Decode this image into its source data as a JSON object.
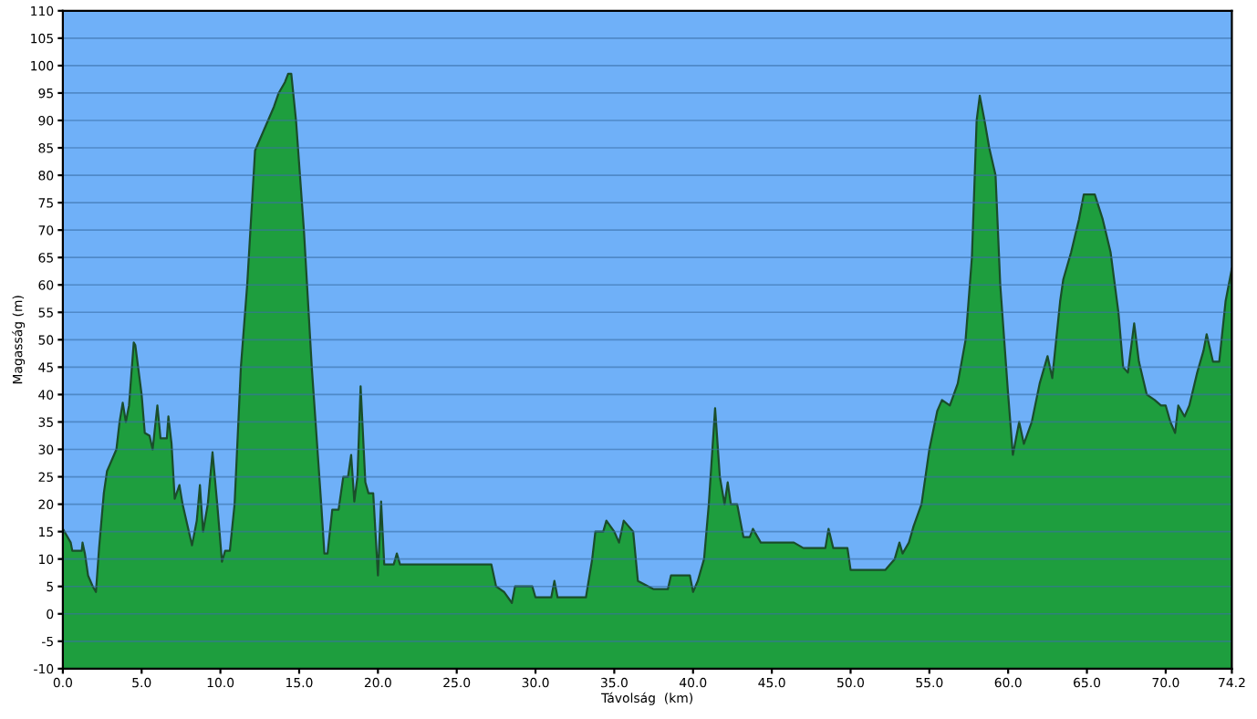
{
  "chart_data": {
    "type": "area",
    "xlabel": "Távolság  (km)",
    "ylabel": "Magasság (m)",
    "xlim": [
      0,
      74.2
    ],
    "ylim": [
      -10,
      110
    ],
    "xticks": [
      {
        "value": 0,
        "label": "0.0"
      },
      {
        "value": 5,
        "label": "5.0"
      },
      {
        "value": 10,
        "label": "10.0"
      },
      {
        "value": 15,
        "label": "15.0"
      },
      {
        "value": 20,
        "label": "20.0"
      },
      {
        "value": 25,
        "label": "25.0"
      },
      {
        "value": 30,
        "label": "30.0"
      },
      {
        "value": 35,
        "label": "35.0"
      },
      {
        "value": 40,
        "label": "40.0"
      },
      {
        "value": 45,
        "label": "45.0"
      },
      {
        "value": 50,
        "label": "50.0"
      },
      {
        "value": 55,
        "label": "55.0"
      },
      {
        "value": 60,
        "label": "60.0"
      },
      {
        "value": 65,
        "label": "65.0"
      },
      {
        "value": 70,
        "label": "70.0"
      },
      {
        "value": 74.2,
        "label": "74.2"
      }
    ],
    "yticks": [
      -10,
      -5,
      0,
      5,
      10,
      15,
      20,
      25,
      30,
      35,
      40,
      45,
      50,
      55,
      60,
      65,
      70,
      75,
      80,
      85,
      90,
      95,
      100,
      105,
      110
    ],
    "grid": "y",
    "x": [
      0,
      0.5,
      0.6,
      1.2,
      1.25,
      1.4,
      1.6,
      1.9,
      2.1,
      2.3,
      2.6,
      2.8,
      3.1,
      3.4,
      3.6,
      3.8,
      4.0,
      4.2,
      4.5,
      4.6,
      5.0,
      5.2,
      5.5,
      5.7,
      6.0,
      6.2,
      6.6,
      6.7,
      6.9,
      7.1,
      7.4,
      7.6,
      8.0,
      8.2,
      8.5,
      8.7,
      8.9,
      9.2,
      9.5,
      9.8,
      10.1,
      10.3,
      10.6,
      10.9,
      11.3,
      11.7,
      12.2,
      12.5,
      12.8,
      13.1,
      13.4,
      13.7,
      14.1,
      14.3,
      14.5,
      14.8,
      15.3,
      15.8,
      16.4,
      16.6,
      16.8,
      17.1,
      17.5,
      17.8,
      18.1,
      18.3,
      18.5,
      18.7,
      18.9,
      19.2,
      19.4,
      19.7,
      20.0,
      20.2,
      20.4,
      21.0,
      21.2,
      21.4,
      27.2,
      27.5,
      28.0,
      28.5,
      28.7,
      29.8,
      30.0,
      31.0,
      31.2,
      31.4,
      33.2,
      33.6,
      33.8,
      34.3,
      34.5,
      35.0,
      35.3,
      35.6,
      36.2,
      36.5,
      37.5,
      38.4,
      38.6,
      39.8,
      40.0,
      40.3,
      40.7,
      41.0,
      41.4,
      41.7,
      42.0,
      42.2,
      42.4,
      42.8,
      43.2,
      43.6,
      43.8,
      44.3,
      46.4,
      47.0,
      48.4,
      48.6,
      48.9,
      49.8,
      50.0,
      52.2,
      52.8,
      53.1,
      53.3,
      53.7,
      54.0,
      54.5,
      55.0,
      55.5,
      55.8,
      56.3,
      56.8,
      57.3,
      57.7,
      58.0,
      58.2,
      58.5,
      58.8,
      59.2,
      59.5,
      60.0,
      60.3,
      60.7,
      61.0,
      61.5,
      62.0,
      62.5,
      62.8,
      63.3,
      63.5,
      64.0,
      64.5,
      64.8,
      65.5,
      66.0,
      66.5,
      67.0,
      67.3,
      67.6,
      68.0,
      68.3,
      68.8,
      69.3,
      69.7,
      70.0,
      70.3,
      70.6,
      70.8,
      71.2,
      71.5,
      72.0,
      72.4,
      72.6,
      73.0,
      73.4,
      73.8,
      74.2
    ],
    "series": [
      {
        "color": "#1e9e3e",
        "values": [
          15.5,
          13,
          11.5,
          11.5,
          13,
          11,
          7,
          5,
          4,
          12,
          22,
          26,
          28,
          30,
          35,
          38.5,
          35,
          38,
          49.5,
          49,
          40,
          33,
          32.5,
          30,
          38,
          32,
          32,
          36,
          31,
          21,
          23.5,
          20,
          15,
          12.5,
          17,
          23.5,
          15,
          20,
          29.5,
          20,
          9.5,
          11.5,
          11.5,
          20,
          45,
          60,
          84.5,
          86.5,
          88.5,
          90.5,
          92.5,
          95,
          97,
          98.5,
          98.5,
          90,
          70,
          45,
          20,
          11,
          11,
          19,
          19,
          25,
          25,
          29,
          20.5,
          25,
          41.5,
          24,
          22,
          22,
          7,
          20.5,
          9,
          9,
          11,
          9,
          9,
          5,
          4,
          2,
          5,
          5,
          3,
          3,
          6,
          3,
          3,
          10,
          15,
          15,
          17,
          15,
          13,
          17,
          15,
          6,
          4.5,
          4.5,
          7,
          7,
          4,
          6,
          10,
          20,
          37.5,
          25,
          20,
          24,
          20,
          20,
          14,
          14,
          15.5,
          13,
          13,
          12,
          12,
          15.5,
          12,
          12,
          8,
          8,
          10,
          13,
          11,
          13,
          16,
          20,
          30,
          37,
          39,
          38,
          42,
          50,
          65,
          90,
          94.5,
          90,
          85,
          80,
          60,
          40,
          29,
          35,
          31,
          35,
          42,
          47,
          43,
          57,
          61,
          66,
          72,
          76.5,
          76.5,
          72,
          66,
          55,
          45,
          44,
          53,
          46,
          40,
          39,
          38,
          38,
          35,
          33,
          38,
          36,
          38,
          44,
          48,
          51,
          46,
          46,
          57,
          63
        ]
      }
    ]
  }
}
